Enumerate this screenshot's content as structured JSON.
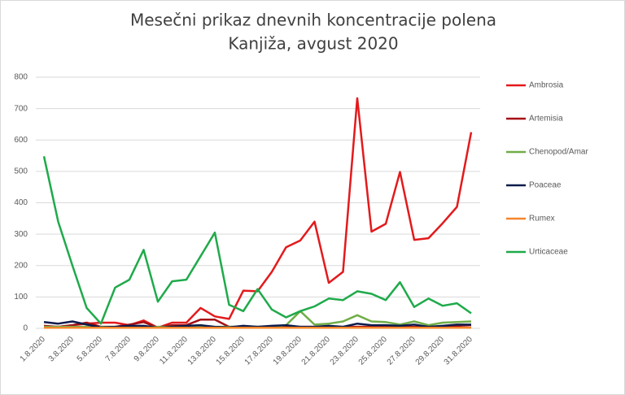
{
  "chart_data": {
    "type": "line",
    "title": "Mesečni prikaz dnevnih koncentracije polena",
    "subtitle": "Kanjiža, avgust 2020",
    "categories": [
      "1.8.2020",
      null,
      "3.8.2020",
      null,
      "5.8.2020",
      null,
      "7.8.2020",
      null,
      "9.8.2020",
      null,
      "11.8.2020",
      null,
      "13.8.2020",
      null,
      "15.8.2020",
      null,
      "17.8.2020",
      null,
      "19.8.2020",
      null,
      "21.8.2020",
      null,
      "23.8.2020",
      null,
      "25.8.2020",
      null,
      "27.8.2020",
      null,
      "29.8.2020",
      null,
      "31.8.2020"
    ],
    "ylim": [
      0,
      800
    ],
    "yticks": [
      0,
      100,
      200,
      300,
      400,
      500,
      600,
      700,
      800
    ],
    "grid": true,
    "legend": "right",
    "series": [
      {
        "name": "Ambrosia",
        "color": "#e31a1c",
        "values": [
          5,
          5,
          10,
          15,
          18,
          18,
          10,
          25,
          2,
          18,
          18,
          65,
          38,
          30,
          120,
          118,
          180,
          258,
          280,
          340,
          145,
          180,
          733,
          308,
          333,
          498,
          282,
          287,
          335,
          387,
          625
        ]
      },
      {
        "name": "Artemisia",
        "color": "#a50f15",
        "values": [
          8,
          5,
          10,
          18,
          5,
          5,
          12,
          20,
          2,
          10,
          10,
          28,
          28,
          5,
          5,
          5,
          5,
          5,
          5,
          5,
          5,
          5,
          5,
          5,
          5,
          5,
          5,
          3,
          5,
          8,
          10
        ]
      },
      {
        "name": "Chenopod/Amar",
        "color": "#70ad47",
        "values": [
          5,
          5,
          5,
          5,
          5,
          5,
          5,
          5,
          5,
          5,
          5,
          5,
          5,
          5,
          5,
          5,
          5,
          10,
          55,
          12,
          15,
          22,
          42,
          22,
          20,
          12,
          22,
          10,
          18,
          20,
          22
        ]
      },
      {
        "name": "Poaceae",
        "color": "#0d1b4c",
        "values": [
          20,
          15,
          22,
          12,
          3,
          5,
          8,
          8,
          2,
          5,
          8,
          10,
          5,
          3,
          8,
          5,
          8,
          10,
          5,
          5,
          8,
          5,
          15,
          10,
          10,
          8,
          12,
          5,
          8,
          12,
          12
        ]
      },
      {
        "name": "Rumex",
        "color": "#f4862a",
        "values": [
          2,
          2,
          2,
          2,
          2,
          2,
          2,
          2,
          2,
          2,
          2,
          2,
          2,
          2,
          2,
          2,
          2,
          2,
          2,
          2,
          2,
          2,
          2,
          2,
          2,
          2,
          2,
          2,
          2,
          2,
          2
        ]
      },
      {
        "name": "Urticaceae",
        "color": "#1faa4a",
        "values": [
          548,
          340,
          200,
          65,
          15,
          130,
          155,
          250,
          85,
          150,
          155,
          230,
          305,
          75,
          55,
          125,
          60,
          35,
          55,
          70,
          95,
          90,
          118,
          110,
          90,
          147,
          68,
          95,
          72,
          80,
          48
        ]
      }
    ]
  }
}
